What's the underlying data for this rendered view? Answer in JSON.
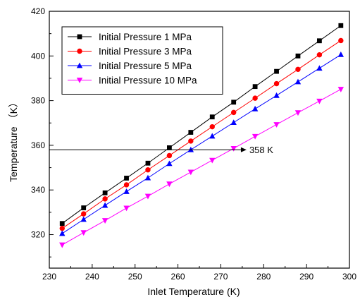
{
  "chart_data": {
    "type": "line",
    "xlabel": "Inlet Temperature (K)",
    "ylabel": "Temperature （K）",
    "xlim": [
      230,
      300
    ],
    "ylim": [
      305,
      420
    ],
    "x_ticks": [
      230,
      240,
      250,
      260,
      270,
      280,
      290,
      300
    ],
    "x_tick_labels": [
      "230",
      "240",
      "250",
      "260",
      "270",
      "280",
      "290",
      "300"
    ],
    "x_minor_step": 5,
    "y_ticks": [
      320,
      340,
      360,
      380,
      400,
      420
    ],
    "y_tick_labels": [
      "320",
      "340",
      "360",
      "380",
      "400",
      "420"
    ],
    "y_minor_step": 10,
    "grid": false,
    "legend_position": "top-left",
    "x": [
      233,
      238,
      243,
      248,
      253,
      258,
      263,
      268,
      273,
      278,
      283,
      288,
      293,
      298
    ],
    "series": [
      {
        "name": "Initial Pressure 1 MPa",
        "color": "#000000",
        "marker": "square",
        "values": [
          325.0,
          332.0,
          338.7,
          345.3,
          352.0,
          358.9,
          365.8,
          372.7,
          379.3,
          386.3,
          393.1,
          400.0,
          406.8,
          413.6
        ]
      },
      {
        "name": "Initial Pressure 3 MPa",
        "color": "#ff0000",
        "marker": "circle",
        "values": [
          322.8,
          329.3,
          336.0,
          342.3,
          349.0,
          355.4,
          361.9,
          368.3,
          374.7,
          381.1,
          387.6,
          394.0,
          400.5,
          406.9
        ]
      },
      {
        "name": "Initial Pressure 5 MPa",
        "color": "#0000ff",
        "marker": "triangle-up",
        "values": [
          320.5,
          326.8,
          333.1,
          339.3,
          345.4,
          351.8,
          358.0,
          364.1,
          370.2,
          376.3,
          382.3,
          388.4,
          394.5,
          400.6
        ]
      },
      {
        "name": "Initial Pressure 10 MPa",
        "color": "#ff00ff",
        "marker": "triangle-down",
        "values": [
          315.4,
          320.9,
          326.3,
          331.9,
          337.2,
          342.7,
          348.0,
          353.3,
          358.6,
          364.0,
          369.3,
          374.6,
          379.8,
          385.1
        ]
      }
    ],
    "annotations": [
      {
        "text": "358 K",
        "y": 358,
        "x_start": 230,
        "x_end": 276
      }
    ]
  }
}
